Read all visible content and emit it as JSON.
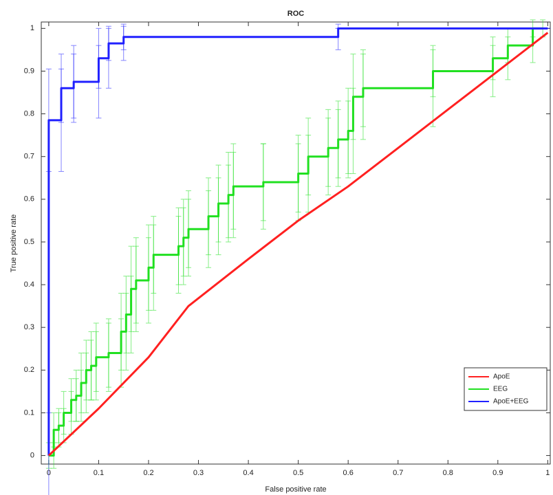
{
  "chart_data": {
    "type": "line",
    "title": "ROC",
    "xlabel": "False positive rate",
    "ylabel": "True positive rate",
    "xlim": [
      -0.015,
      1.005
    ],
    "ylim": [
      -0.02,
      1.015
    ],
    "xticks": [
      0,
      0.1,
      0.2,
      0.3,
      0.4,
      0.5,
      0.6,
      0.7,
      0.8,
      0.9,
      1
    ],
    "yticks": [
      0,
      0.1,
      0.2,
      0.3,
      0.4,
      0.5,
      0.6,
      0.7,
      0.8,
      0.9,
      1
    ],
    "grid": false,
    "legend": "lower right",
    "series": [
      {
        "name": "ApoE",
        "color": "#ff2020",
        "x": [
          0,
          0.1,
          0.2,
          0.28,
          0.4,
          0.5,
          0.6,
          0.7,
          0.8,
          0.9,
          1
        ],
        "values": [
          0,
          0.11,
          0.23,
          0.35,
          0.46,
          0.55,
          0.63,
          0.72,
          0.81,
          0.9,
          0.99
        ]
      },
      {
        "name": "EEG",
        "color": "#20e020",
        "x": [
          0,
          0.01,
          0.01,
          0.02,
          0.02,
          0.03,
          0.03,
          0.045,
          0.045,
          0.055,
          0.055,
          0.065,
          0.065,
          0.075,
          0.075,
          0.085,
          0.085,
          0.095,
          0.095,
          0.12,
          0.12,
          0.145,
          0.145,
          0.155,
          0.155,
          0.165,
          0.165,
          0.175,
          0.175,
          0.2,
          0.2,
          0.21,
          0.21,
          0.26,
          0.26,
          0.27,
          0.27,
          0.28,
          0.28,
          0.32,
          0.32,
          0.34,
          0.34,
          0.36,
          0.36,
          0.37,
          0.37,
          0.43,
          0.43,
          0.5,
          0.5,
          0.52,
          0.52,
          0.56,
          0.56,
          0.58,
          0.58,
          0.6,
          0.6,
          0.61,
          0.61,
          0.63,
          0.63,
          0.77,
          0.77,
          0.89,
          0.89,
          0.92,
          0.92,
          0.97,
          0.97,
          0.99
        ],
        "values": [
          0,
          0,
          0.06,
          0.06,
          0.07,
          0.07,
          0.1,
          0.1,
          0.13,
          0.13,
          0.14,
          0.14,
          0.17,
          0.17,
          0.2,
          0.2,
          0.21,
          0.21,
          0.23,
          0.23,
          0.24,
          0.24,
          0.29,
          0.29,
          0.33,
          0.33,
          0.39,
          0.39,
          0.41,
          0.41,
          0.44,
          0.44,
          0.47,
          0.47,
          0.49,
          0.49,
          0.51,
          0.51,
          0.53,
          0.53,
          0.56,
          0.56,
          0.59,
          0.59,
          0.61,
          0.61,
          0.63,
          0.63,
          0.64,
          0.64,
          0.66,
          0.66,
          0.7,
          0.7,
          0.72,
          0.72,
          0.74,
          0.74,
          0.76,
          0.76,
          0.84,
          0.84,
          0.86,
          0.86,
          0.9,
          0.9,
          0.93,
          0.93,
          0.96,
          0.96,
          1,
          1
        ],
        "errors": [
          0.03,
          0.03,
          0.04,
          0.04,
          0.04,
          0.04,
          0.05,
          0.05,
          0.05,
          0.05,
          0.06,
          0.06,
          0.07,
          0.07,
          0.07,
          0.07,
          0.08,
          0.08,
          0.08,
          0.08,
          0.08,
          0.08,
          0.09,
          0.09,
          0.09,
          0.09,
          0.1,
          0.1,
          0.1,
          0.1,
          0.1,
          0.1,
          0.09,
          0.09,
          0.09,
          0.09,
          0.09,
          0.09,
          0.09,
          0.09,
          0.09,
          0.09,
          0.09,
          0.09,
          0.1,
          0.1,
          0.1,
          0.1,
          0.09,
          0.09,
          0.09,
          0.09,
          0.09,
          0.09,
          0.09,
          0.09,
          0.09,
          0.09,
          0.1,
          0.1,
          0.1,
          0.1,
          0.09,
          0.09,
          0.06,
          0.06,
          0.05,
          0.05,
          0.04,
          0.04,
          0.02,
          0.02
        ]
      },
      {
        "name": "ApoE+EEG",
        "color": "#2020ff",
        "x": [
          0,
          0,
          0.025,
          0.025,
          0.05,
          0.05,
          0.1,
          0.1,
          0.12,
          0.12,
          0.15,
          0.15,
          0.58,
          0.58,
          1
        ],
        "values": [
          0,
          0.785,
          0.785,
          0.86,
          0.86,
          0.875,
          0.875,
          0.93,
          0.93,
          0.965,
          0.965,
          0.98,
          0.98,
          1,
          1
        ],
        "errors": [
          0.1,
          0.12,
          0.12,
          0.08,
          0.08,
          0.085,
          0.085,
          0.07,
          0.07,
          0.04,
          0.04,
          0.03,
          0.03,
          0,
          0
        ]
      }
    ]
  }
}
